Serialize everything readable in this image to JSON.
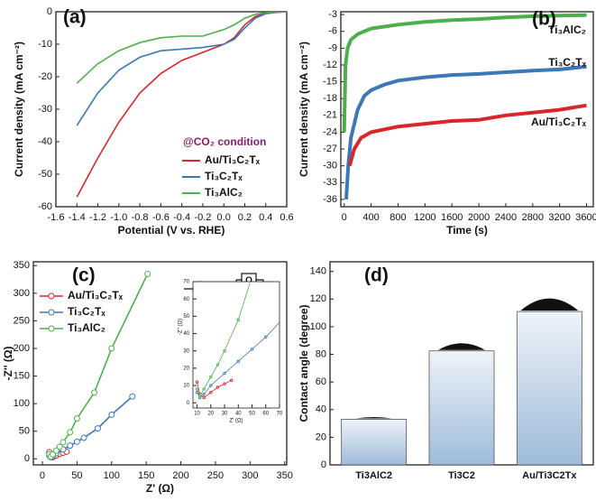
{
  "chart_data": [
    {
      "type": "line",
      "panel_label": "(a)",
      "xlabel": "Potential (V vs. RHE)",
      "ylabel": "Current density (mA cm⁻²)",
      "xlim": [
        -1.6,
        0.6
      ],
      "ylim": [
        -60,
        0
      ],
      "xticks": [
        -1.6,
        -1.4,
        -1.2,
        {
          "value": -1,
          "label": "-1.0"
        },
        -0.8,
        -0.6,
        -0.4,
        -0.2,
        {
          "value": 0,
          "label": "0.0"
        },
        0.2,
        0.4,
        0.6
      ],
      "yticks": [
        0,
        -10,
        -20,
        -30,
        -40,
        -50,
        -60
      ],
      "legend": "lower right",
      "legend_title": "@CO₂ condition",
      "x": [
        -1.4,
        -1.2,
        -1.0,
        -0.8,
        -0.6,
        -0.4,
        -0.2,
        0,
        0.1,
        0.2,
        0.3,
        0.4,
        0.5,
        0.6
      ],
      "series": [
        {
          "name": "Au/Ti₃C₂Tₓ",
          "color": "#d9262b",
          "values": [
            -57,
            -45,
            -34,
            -25,
            -19,
            -15,
            -12.5,
            -10,
            -8,
            -4,
            -1.5,
            -0.5,
            -0.2,
            0
          ]
        },
        {
          "name": "Ti₃C₂Tₓ",
          "color": "#3a78b8",
          "values": [
            -35,
            -25,
            -18,
            -14,
            -12,
            -11.5,
            -11,
            -10,
            -8.5,
            -5,
            -2,
            -0.6,
            -0.2,
            0
          ]
        },
        {
          "name": "Ti₃AlC₂",
          "color": "#4cb04a",
          "values": [
            -22,
            -16,
            -12,
            -9.5,
            -8,
            -7.5,
            -7.5,
            -5.5,
            -4,
            -2,
            -0.8,
            -0.3,
            -0.1,
            0
          ]
        }
      ]
    },
    {
      "type": "line",
      "panel_label": "(b)",
      "xlabel": "Time (s)",
      "ylabel": "Current density (mA cm⁻²)",
      "xlim": [
        -50,
        3700
      ],
      "ylim": [
        -37.3,
        -2.5
      ],
      "xticks": [
        0,
        400,
        800,
        1200,
        1600,
        2000,
        2400,
        2800,
        3200,
        3600
      ],
      "yticks": [
        -3,
        -6,
        -9,
        -12,
        -15,
        -18,
        -21,
        -24,
        -27,
        -30,
        -33,
        -36
      ],
      "legend": "direct",
      "series": [
        {
          "name": "Ti₃AlC₂",
          "color": "#4cb04a",
          "x": [
            0,
            20,
            50,
            100,
            200,
            400,
            800,
            1200,
            1600,
            2000,
            2400,
            2800,
            3200,
            3600
          ],
          "values": [
            -24,
            -12,
            -9,
            -7.5,
            -6.5,
            -5.5,
            -4.8,
            -4.3,
            -4,
            -3.8,
            -3.5,
            -3.3,
            -3.2,
            -3.1
          ]
        },
        {
          "name": "Ti₃C₂Tₓ",
          "color": "#3a78b8",
          "x": [
            30,
            60,
            100,
            200,
            300,
            400,
            600,
            800,
            1200,
            1600,
            2000,
            2400,
            2800,
            3200,
            3600
          ],
          "values": [
            -36,
            -30,
            -25,
            -20,
            -17.5,
            -16.5,
            -15.5,
            -14.8,
            -14.2,
            -13.8,
            -13.6,
            -13.3,
            -13,
            -12.8,
            -12.3
          ]
        },
        {
          "name": "Au/Ti₃C₂Tₓ",
          "color": "#d9262b",
          "x": [
            80,
            150,
            250,
            400,
            600,
            800,
            1200,
            1600,
            2000,
            2400,
            2800,
            3200,
            3600
          ],
          "values": [
            -30,
            -27,
            -25,
            -24,
            -23.5,
            -23,
            -22.5,
            -22,
            -21.8,
            -21,
            -20.5,
            -20,
            -19.2
          ]
        }
      ]
    },
    {
      "type": "line",
      "markers": true,
      "panel_label": "(c)",
      "xlabel": "Z' (Ω)",
      "ylabel": "-Z'' (Ω)",
      "xlim": [
        -13,
        353
      ],
      "ylim": [
        -11,
        357
      ],
      "xticks": [
        0,
        50,
        100,
        150,
        200,
        250,
        300,
        350
      ],
      "yticks": [
        0,
        50,
        100,
        150,
        200,
        250,
        300,
        350
      ],
      "legend": "upper left",
      "circuit": [
        "L",
        "Q"
      ],
      "inset": {
        "xlabel": "Z' (Ω)",
        "ylabel": "-Z'' (Ω)",
        "xlim": [
          7,
          70
        ],
        "ylim": [
          -3,
          70
        ],
        "xticks": [
          10,
          20,
          30,
          40,
          50,
          60,
          70
        ],
        "yticks": [
          0,
          10,
          20,
          30,
          40,
          50,
          60,
          70
        ]
      },
      "series": [
        {
          "name": "Au/Ti₃C₂Tₓ",
          "color": "#d9262b",
          "x": [
            10,
            12,
            15,
            20,
            25,
            30,
            35
          ],
          "values": [
            12,
            5,
            3,
            6,
            9,
            11,
            13
          ]
        },
        {
          "name": "Ti₃C₂Tₓ",
          "color": "#3a78b8",
          "x": [
            10,
            12,
            15,
            20,
            30,
            40,
            50,
            60,
            80,
            100,
            130
          ],
          "values": [
            6,
            3,
            5,
            10,
            17,
            24,
            31,
            38,
            55,
            80,
            113
          ]
        },
        {
          "name": "Ti₃AlC₂",
          "color": "#4cb04a",
          "x": [
            10,
            12,
            15,
            20,
            25,
            30,
            40,
            50,
            75,
            100,
            152
          ],
          "values": [
            8,
            4,
            8,
            15,
            22,
            30,
            48,
            73,
            120,
            200,
            335
          ]
        }
      ]
    },
    {
      "type": "bar",
      "panel_label": "(d)",
      "ylabel": "Contact angle (degree)",
      "ylim": [
        0,
        147
      ],
      "yticks": [
        0,
        20,
        40,
        60,
        80,
        100,
        120,
        140
      ],
      "categories": [
        "Ti3AlC2",
        "Ti3C2",
        "Au/Ti3C2Tx"
      ],
      "values": [
        33,
        82.5,
        111
      ],
      "color": "#aac4df"
    }
  ]
}
